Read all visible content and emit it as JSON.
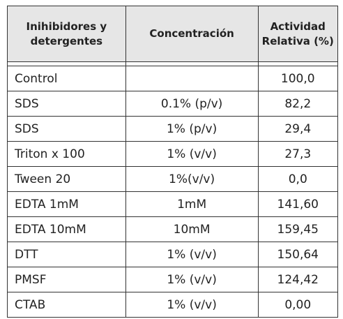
{
  "table": {
    "headers": {
      "col1_line1": "Inihibidores y",
      "col1_line2": "detergentes",
      "col2": "Concentración",
      "col3_line1": "Actividad",
      "col3_line2": "Relativa (%)"
    },
    "rows": [
      {
        "name": "Control",
        "conc": "",
        "activity": "100,0"
      },
      {
        "name": "SDS",
        "conc": "0.1% (p/v)",
        "activity": "82,2"
      },
      {
        "name": "SDS",
        "conc": "1% (p/v)",
        "activity": "29,4"
      },
      {
        "name": "Triton x 100",
        "conc": "1% (v/v)",
        "activity": "27,3"
      },
      {
        "name": "Tween 20",
        "conc": "1%(v/v)",
        "activity": "0,0"
      },
      {
        "name": "EDTA 1mM",
        "conc": "1mM",
        "activity": "141,60"
      },
      {
        "name": "EDTA 10mM",
        "conc": "10mM",
        "activity": "159,45"
      },
      {
        "name": "DTT",
        "conc": "1% (v/v)",
        "activity": "150,64"
      },
      {
        "name": "PMSF",
        "conc": "1% (v/v)",
        "activity": "124,42"
      },
      {
        "name": "CTAB",
        "conc": "1% (v/v)",
        "activity": "0,00"
      }
    ]
  }
}
